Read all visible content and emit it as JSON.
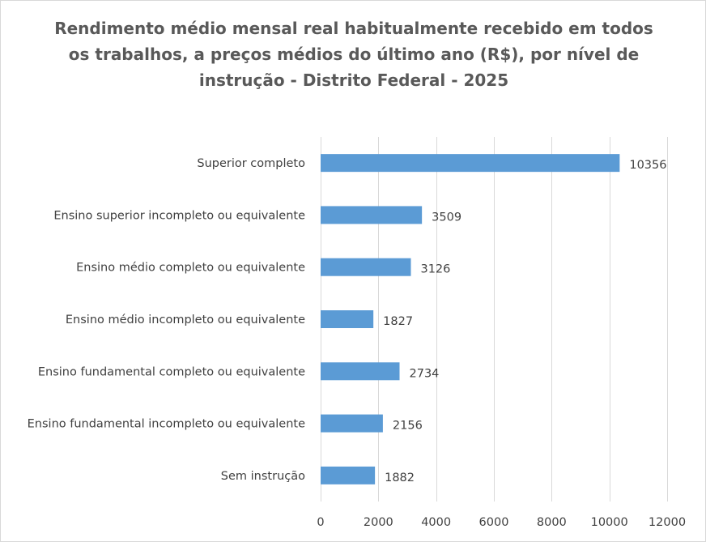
{
  "chart_data": {
    "type": "bar",
    "orientation": "horizontal",
    "title": "Rendimento médio mensal real habitualmente recebido em todos os trabalhos, a preços médios do último ano (R$), por nível de instrução - Distrito Federal - 2025",
    "title_lines": [
      "Rendimento médio mensal real habitualmente recebido em todos",
      "os trabalhos, a preços médios do último ano (R$), por nível de",
      "instrução - Distrito Federal - 2025"
    ],
    "categories": [
      "Superior completo",
      "Ensino superior incompleto ou equivalente",
      "Ensino médio completo ou equivalente",
      "Ensino médio incompleto ou equivalente",
      "Ensino fundamental completo ou equivalente",
      "Ensino fundamental incompleto ou equivalente",
      "Sem instrução"
    ],
    "values": [
      10356,
      3509,
      3126,
      1827,
      2734,
      2156,
      1882
    ],
    "data_labels": [
      "10356",
      "3509",
      "3126",
      "1827",
      "2734",
      "2156",
      "1882"
    ],
    "xlim": [
      0,
      12000
    ],
    "x_ticks": [
      0,
      2000,
      4000,
      6000,
      8000,
      10000,
      12000
    ],
    "x_tick_labels": [
      "0",
      "2000",
      "4000",
      "6000",
      "8000",
      "10000",
      "12000"
    ],
    "grid": "vertical",
    "legend": "none",
    "colors": {
      "bar": "#5B9BD5",
      "grid": "#d9d9d9",
      "text": "#404040",
      "title": "#595959"
    }
  }
}
